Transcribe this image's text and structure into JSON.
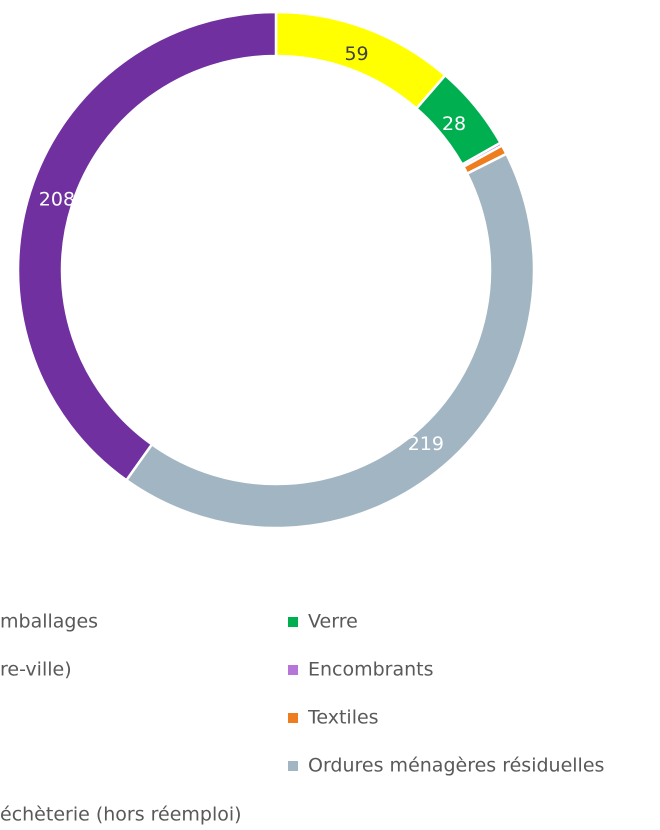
{
  "chart_data": {
    "type": "donut",
    "categories": [
      null,
      "Verre",
      "Encombrants",
      "Textiles",
      "Ordures ménagères résiduelles",
      null
    ],
    "values": [
      59,
      28,
      1,
      3,
      219,
      208
    ],
    "colors": [
      "#ffff00",
      "#00b050",
      "#b675d8",
      "#ee7d1f",
      "#a2b5c2",
      "#7030a0"
    ],
    "show_labels": [
      true,
      true,
      false,
      false,
      true,
      true
    ],
    "label_colors": [
      "#404040",
      "#ffffff",
      null,
      null,
      "#ffffff",
      "#ffffff"
    ],
    "legend_left": [
      "mballages",
      "re-ville)",
      "échèterie (hors réemploi)"
    ]
  }
}
